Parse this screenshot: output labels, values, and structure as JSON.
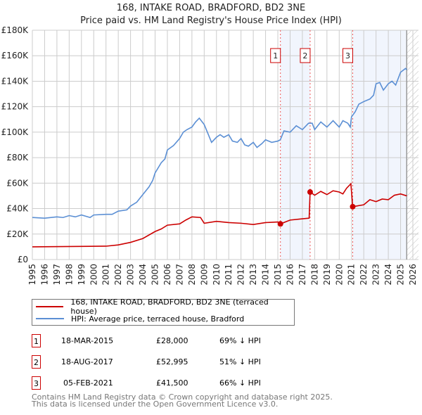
{
  "chart_data": {
    "type": "line",
    "title": "168, INTAKE ROAD, BRADFORD, BD2 3NE",
    "subtitle": "Price paid vs. HM Land Registry's House Price Index (HPI)",
    "xlim": [
      1995,
      2026
    ],
    "ylim": [
      0,
      180000
    ],
    "y_ticks": [
      "£0",
      "£20K",
      "£40K",
      "£60K",
      "£80K",
      "£100K",
      "£120K",
      "£140K",
      "£160K",
      "£180K"
    ],
    "x_ticks": [
      "1995",
      "1996",
      "1997",
      "1998",
      "1999",
      "2000",
      "2001",
      "2002",
      "2003",
      "2004",
      "2005",
      "2006",
      "2007",
      "2008",
      "2009",
      "2010",
      "2011",
      "2012",
      "2013",
      "2014",
      "2015",
      "2016",
      "2017",
      "2018",
      "2019",
      "2020",
      "2021",
      "2022",
      "2023",
      "2024",
      "2025",
      "2026"
    ],
    "grid": true,
    "series": [
      {
        "name": "168, INTAKE ROAD, BRADFORD, BD2 3NE (terraced house)",
        "color": "#cc0000",
        "points": [
          [
            1995,
            10
          ],
          [
            2001,
            10.5
          ],
          [
            2002,
            11.5
          ],
          [
            2003,
            13.5
          ],
          [
            2004,
            16.5
          ],
          [
            2005,
            22
          ],
          [
            2005.5,
            24
          ],
          [
            2006,
            27
          ],
          [
            2007,
            28
          ],
          [
            2007.5,
            31
          ],
          [
            2008,
            33.5
          ],
          [
            2008.7,
            33
          ],
          [
            2009,
            28.5
          ],
          [
            2010,
            30
          ],
          [
            2011,
            29
          ],
          [
            2012,
            28.5
          ],
          [
            2013,
            27.5
          ],
          [
            2014,
            29
          ],
          [
            2015,
            29.5
          ],
          [
            2015.21,
            28
          ],
          [
            2016,
            31
          ],
          [
            2017,
            32
          ],
          [
            2017.55,
            32.5
          ],
          [
            2017.63,
            53
          ],
          [
            2018,
            50.5
          ],
          [
            2018.5,
            53.5
          ],
          [
            2019,
            51
          ],
          [
            2019.5,
            54
          ],
          [
            2020,
            53
          ],
          [
            2020.3,
            51.5
          ],
          [
            2020.6,
            56
          ],
          [
            2020.95,
            59.5
          ],
          [
            2021.1,
            41.5
          ],
          [
            2022,
            43
          ],
          [
            2022.5,
            47
          ],
          [
            2023,
            45.5
          ],
          [
            2023.5,
            47.5
          ],
          [
            2024,
            47
          ],
          [
            2024.5,
            50.5
          ],
          [
            2025,
            51.5
          ],
          [
            2025.5,
            50
          ]
        ]
      },
      {
        "name": "HPI: Average price, terraced house, Bradford",
        "color": "#5b8fd4",
        "points": [
          [
            1995,
            33
          ],
          [
            1996,
            32.5
          ],
          [
            1997,
            33.5
          ],
          [
            1997.5,
            33
          ],
          [
            1998,
            34.5
          ],
          [
            1998.5,
            33.5
          ],
          [
            1999,
            35
          ],
          [
            1999.7,
            33
          ],
          [
            2000,
            35
          ],
          [
            2001,
            35.5
          ],
          [
            2001.5,
            35.5
          ],
          [
            2002,
            38
          ],
          [
            2002.7,
            39
          ],
          [
            2003,
            42
          ],
          [
            2003.5,
            45
          ],
          [
            2004,
            51
          ],
          [
            2004.5,
            57
          ],
          [
            2004.8,
            62
          ],
          [
            2005,
            68
          ],
          [
            2005.5,
            76
          ],
          [
            2005.8,
            79
          ],
          [
            2006,
            86
          ],
          [
            2006.5,
            89.5
          ],
          [
            2007,
            95
          ],
          [
            2007.3,
            100
          ],
          [
            2007.6,
            102
          ],
          [
            2008,
            104
          ],
          [
            2008.3,
            108
          ],
          [
            2008.6,
            111
          ],
          [
            2009,
            106
          ],
          [
            2009.3,
            99
          ],
          [
            2009.6,
            92
          ],
          [
            2010,
            96
          ],
          [
            2010.3,
            98
          ],
          [
            2010.6,
            96
          ],
          [
            2011,
            98
          ],
          [
            2011.3,
            93
          ],
          [
            2011.7,
            92
          ],
          [
            2012,
            95
          ],
          [
            2012.3,
            90
          ],
          [
            2012.6,
            89
          ],
          [
            2013,
            92
          ],
          [
            2013.3,
            88
          ],
          [
            2013.7,
            91
          ],
          [
            2014,
            94
          ],
          [
            2014.5,
            92
          ],
          [
            2015,
            93
          ],
          [
            2015.2,
            94
          ],
          [
            2015.5,
            101
          ],
          [
            2016,
            100
          ],
          [
            2016.5,
            105
          ],
          [
            2017,
            102
          ],
          [
            2017.5,
            107
          ],
          [
            2017.8,
            107
          ],
          [
            2018,
            102
          ],
          [
            2018.5,
            108
          ],
          [
            2019,
            104
          ],
          [
            2019.5,
            109
          ],
          [
            2020,
            104
          ],
          [
            2020.3,
            109
          ],
          [
            2020.7,
            107
          ],
          [
            2020.9,
            104
          ],
          [
            2021,
            112
          ],
          [
            2021.3,
            116
          ],
          [
            2021.6,
            122
          ],
          [
            2022,
            124
          ],
          [
            2022.5,
            126
          ],
          [
            2022.8,
            129
          ],
          [
            2023,
            138
          ],
          [
            2023.3,
            139
          ],
          [
            2023.6,
            133
          ],
          [
            2024,
            138
          ],
          [
            2024.3,
            140
          ],
          [
            2024.6,
            137
          ],
          [
            2025,
            147
          ],
          [
            2025.4,
            150
          ],
          [
            2025.5,
            149
          ]
        ]
      }
    ],
    "y_unit": "£K",
    "sales": [
      {
        "label": "1",
        "x": 2015.21,
        "price": 28000
      },
      {
        "label": "2",
        "x": 2017.63,
        "price": 52995
      },
      {
        "label": "3",
        "x": 2021.1,
        "price": 41500
      }
    ],
    "shaded_ranges": [
      [
        2015.21,
        2017.63
      ],
      [
        2021.1,
        2025.5
      ]
    ],
    "hatched_from": 2025.5,
    "legend_placement": "below"
  },
  "legend": {
    "property": "168, INTAKE ROAD, BRADFORD, BD2 3NE (terraced house)",
    "hpi": "HPI: Average price, terraced house, Bradford"
  },
  "transactions": [
    {
      "num": "1",
      "date": "18-MAR-2015",
      "price": "£28,000",
      "delta": "69% ↓ HPI"
    },
    {
      "num": "2",
      "date": "18-AUG-2017",
      "price": "£52,995",
      "delta": "51% ↓ HPI"
    },
    {
      "num": "3",
      "date": "05-FEB-2021",
      "price": "£41,500",
      "delta": "66% ↓ HPI"
    }
  ],
  "footer": {
    "line1": "Contains HM Land Registry data © Crown copyright and database right 2025.",
    "line2": "This data is licensed under the Open Government Licence v3.0."
  }
}
